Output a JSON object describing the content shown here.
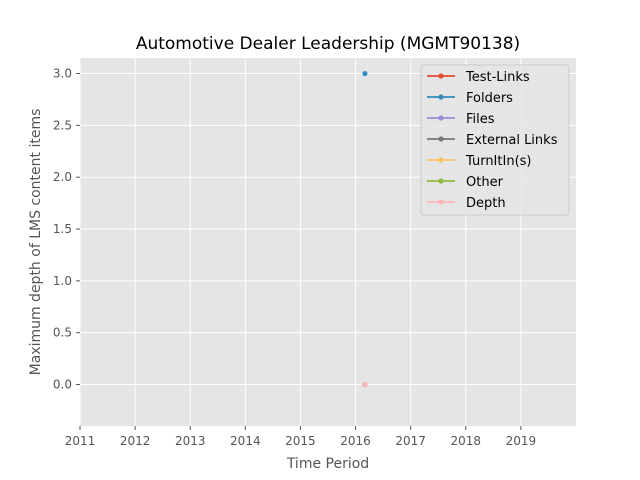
{
  "chart_data": {
    "type": "line",
    "title": "Automotive Dealer Leadership (MGMT90138)",
    "xlabel": "Time Period",
    "ylabel": "Maximum depth of LMS content items",
    "xlim": [
      2011,
      2020
    ],
    "ylim": [
      -0.4,
      3.15
    ],
    "x_ticks": [
      {
        "value": 2011,
        "label": "2011"
      },
      {
        "value": 2012,
        "label": "2012"
      },
      {
        "value": 2013,
        "label": "2013"
      },
      {
        "value": 2014,
        "label": "2014"
      },
      {
        "value": 2015,
        "label": "2015"
      },
      {
        "value": 2016,
        "label": "2016"
      },
      {
        "value": 2017,
        "label": "2017"
      },
      {
        "value": 2018,
        "label": "2018"
      },
      {
        "value": 2019,
        "label": "2019"
      }
    ],
    "y_ticks": [
      {
        "value": 0.0,
        "label": "0.0"
      },
      {
        "value": 0.5,
        "label": "0.5"
      },
      {
        "value": 1.0,
        "label": "1.0"
      },
      {
        "value": 1.5,
        "label": "1.5"
      },
      {
        "value": 2.0,
        "label": "2.0"
      },
      {
        "value": 2.5,
        "label": "2.5"
      },
      {
        "value": 3.0,
        "label": "3.0"
      }
    ],
    "grid": true,
    "legend_position": "top-right",
    "background": "#e5e5e5",
    "series": [
      {
        "name": "Test-Links",
        "color": "#e24a33",
        "points": [
          {
            "x": 2016.17,
            "y": 0
          }
        ]
      },
      {
        "name": "Folders",
        "color": "#348abd",
        "points": [
          {
            "x": 2016.17,
            "y": 3
          }
        ]
      },
      {
        "name": "Files",
        "color": "#988ed5",
        "points": [
          {
            "x": 2016.17,
            "y": 0
          }
        ]
      },
      {
        "name": "External Links",
        "color": "#777777",
        "points": [
          {
            "x": 2016.17,
            "y": 0
          }
        ]
      },
      {
        "name": "TurnItIn(s)",
        "color": "#fbc15e",
        "points": [
          {
            "x": 2016.17,
            "y": 0
          }
        ]
      },
      {
        "name": "Other",
        "color": "#8eba42",
        "points": [
          {
            "x": 2016.17,
            "y": 0
          }
        ]
      },
      {
        "name": "Depth",
        "color": "#ffb5b8",
        "points": [
          {
            "x": 2016.17,
            "y": 0
          }
        ]
      }
    ]
  }
}
